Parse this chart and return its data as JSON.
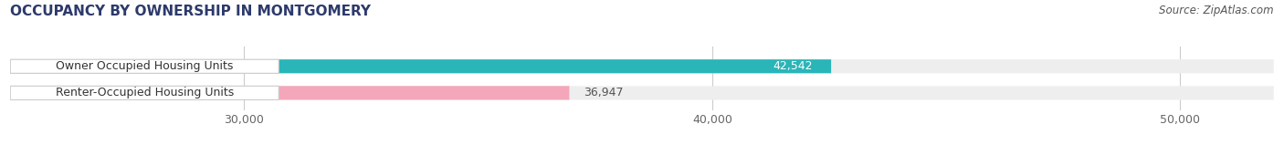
{
  "title": "OCCUPANCY BY OWNERSHIP IN MONTGOMERY",
  "source": "Source: ZipAtlas.com",
  "categories": [
    "Owner Occupied Housing Units",
    "Renter-Occupied Housing Units"
  ],
  "values": [
    42542,
    36947
  ],
  "bar_colors": [
    "#2ab5b8",
    "#f4a7ba"
  ],
  "value_label_colors": [
    "white",
    "#555555"
  ],
  "bar_labels": [
    "42,542",
    "36,947"
  ],
  "xlim": [
    25000,
    52000
  ],
  "xticks": [
    30000,
    40000,
    50000
  ],
  "xtick_labels": [
    "30,000",
    "40,000",
    "50,000"
  ],
  "background_color": "#ffffff",
  "bar_background_color": "#eeeeee",
  "title_fontsize": 11,
  "source_fontsize": 8.5,
  "label_fontsize": 9,
  "value_fontsize": 9,
  "tick_fontsize": 9
}
